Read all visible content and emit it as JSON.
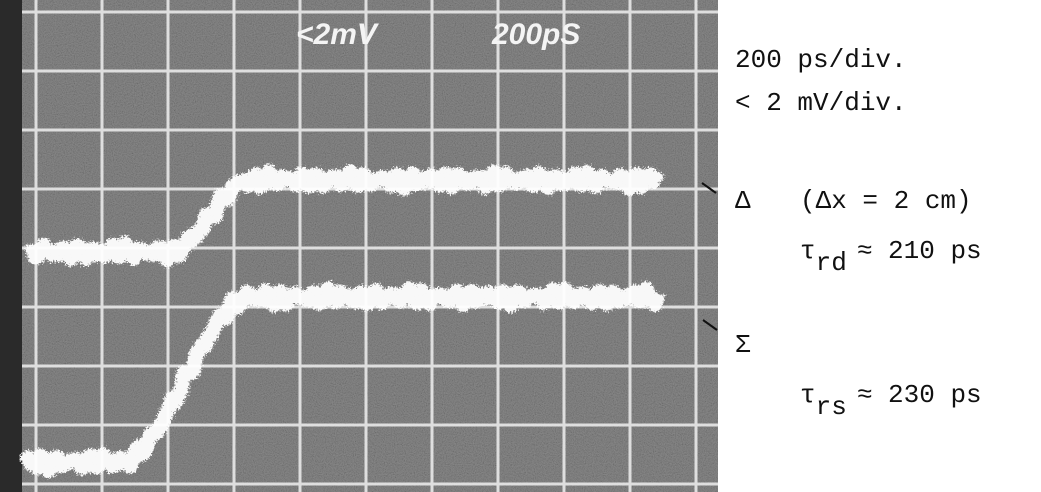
{
  "screen": {
    "labels": [
      "<2mV",
      "200pS"
    ]
  },
  "annotations": {
    "timebase": "200 ps/div.",
    "sensitivity": "< 2 mV/div.",
    "delta": {
      "symbol": "Δ",
      "note": "(Δx = 2 cm)",
      "tau": "τ",
      "subscript": "rd",
      "value": "≈ 210 ps"
    },
    "sigma": {
      "symbol": "Σ",
      "tau": "τ",
      "subscript": "rs",
      "value": "≈ 230 ps"
    }
  }
}
